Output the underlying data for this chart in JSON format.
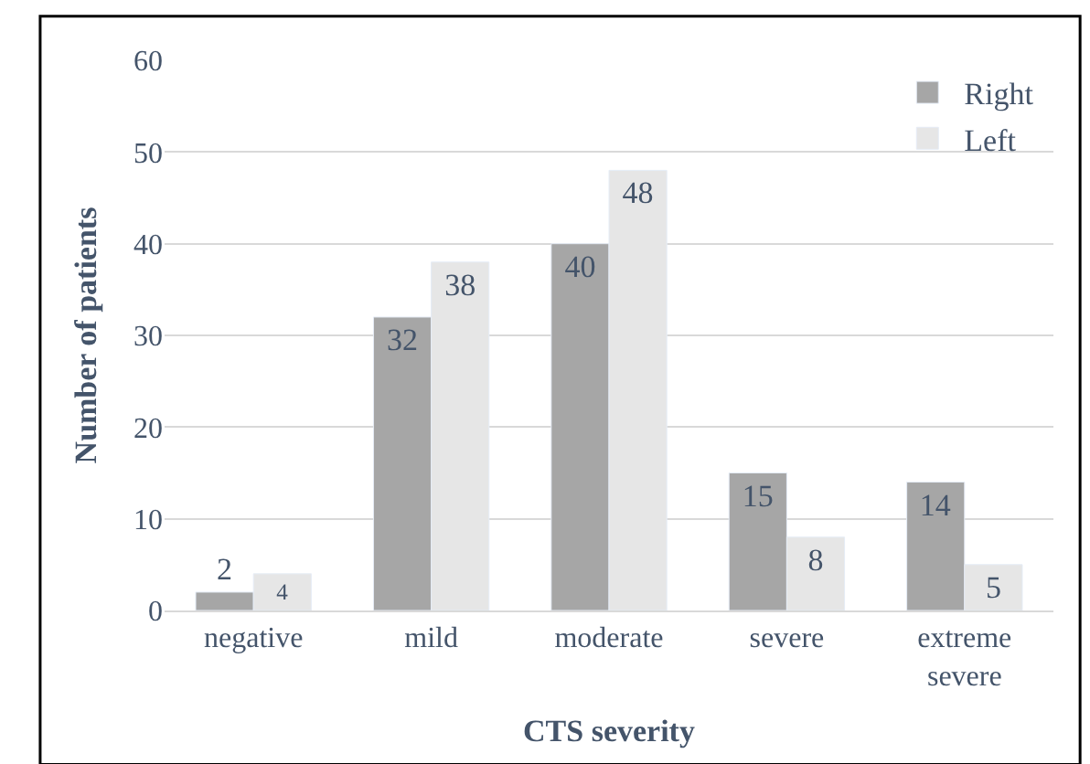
{
  "chart_data": {
    "type": "bar",
    "xlabel": "CTS severity",
    "ylabel": "Number of patients",
    "categories": [
      "negative",
      "mild",
      "moderate",
      "severe",
      "extreme severe"
    ],
    "series": [
      {
        "name": "Right",
        "color": "#a6a6a6",
        "values": [
          2,
          32,
          40,
          15,
          14
        ]
      },
      {
        "name": "Left",
        "color": "#e6e6e6",
        "values": [
          4,
          38,
          48,
          8,
          5
        ]
      }
    ],
    "ylim": [
      0,
      60
    ],
    "yticks": [
      0,
      10,
      20,
      30,
      40,
      50,
      60
    ],
    "grid": "y",
    "legend": "top right",
    "data_labels": true
  }
}
